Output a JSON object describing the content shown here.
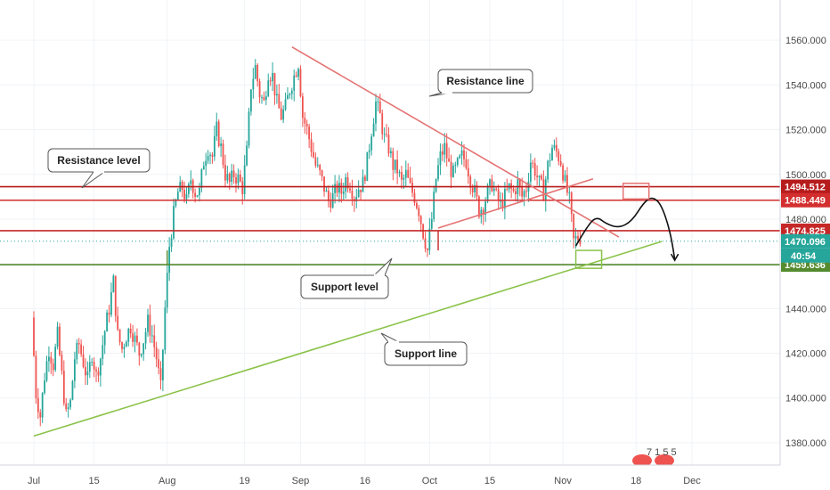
{
  "chart_data": {
    "type": "candlestick",
    "instrument_note": "",
    "x_axis": {
      "ticks": [
        {
          "label": "Jul",
          "day": 0
        },
        {
          "label": "15",
          "day": 14
        },
        {
          "label": "Aug",
          "day": 31
        },
        {
          "label": "19",
          "day": 49
        },
        {
          "label": "Sep",
          "day": 62
        },
        {
          "label": "16",
          "day": 77
        },
        {
          "label": "Oct",
          "day": 92
        },
        {
          "label": "15",
          "day": 106
        },
        {
          "label": "Nov",
          "day": 123
        },
        {
          "label": "18",
          "day": 140
        },
        {
          "label": "Dec",
          "day": 153
        }
      ]
    },
    "y_axis": {
      "ylim": [
        1370,
        1578
      ],
      "ticks": [
        1380,
        1400,
        1420,
        1440,
        1460,
        1480,
        1500,
        1520,
        1540,
        1560
      ],
      "tick_labels": [
        "1380.000",
        "1400.000",
        "1420.000",
        "1440.000",
        "1460.000",
        "1480.000",
        "1500.000",
        "1520.000",
        "1540.000",
        "1560.000"
      ]
    },
    "grid": true,
    "candle_up_color": "#26a69a",
    "candle_down_color": "#ef5350",
    "price_path": [
      [
        0,
        1436
      ],
      [
        1,
        1402
      ],
      [
        2,
        1392
      ],
      [
        3,
        1410
      ],
      [
        4,
        1422
      ],
      [
        5,
        1415
      ],
      [
        6,
        1428
      ],
      [
        7,
        1410
      ],
      [
        8,
        1392
      ],
      [
        9,
        1398
      ],
      [
        10,
        1418
      ],
      [
        11,
        1424
      ],
      [
        12,
        1416
      ],
      [
        13,
        1408
      ],
      [
        14,
        1420
      ],
      [
        15,
        1410
      ],
      [
        16,
        1418
      ],
      [
        17,
        1430
      ],
      [
        18,
        1440
      ],
      [
        19,
        1452
      ],
      [
        20,
        1428
      ],
      [
        21,
        1422
      ],
      [
        22,
        1428
      ],
      [
        23,
        1432
      ],
      [
        24,
        1426
      ],
      [
        25,
        1420
      ],
      [
        26,
        1426
      ],
      [
        27,
        1434
      ],
      [
        28,
        1428
      ],
      [
        29,
        1418
      ],
      [
        30,
        1404
      ],
      [
        31,
        1440
      ],
      [
        32,
        1468
      ],
      [
        33,
        1482
      ],
      [
        34,
        1492
      ],
      [
        35,
        1494
      ],
      [
        36,
        1488
      ],
      [
        37,
        1498
      ],
      [
        38,
        1492
      ],
      [
        39,
        1492
      ],
      [
        40,
        1506
      ],
      [
        41,
        1512
      ],
      [
        42,
        1508
      ],
      [
        43,
        1520
      ],
      [
        44,
        1512
      ],
      [
        45,
        1500
      ],
      [
        46,
        1496
      ],
      [
        47,
        1500
      ],
      [
        48,
        1498
      ],
      [
        49,
        1494
      ],
      [
        50,
        1510
      ],
      [
        51,
        1540
      ],
      [
        52,
        1548
      ],
      [
        53,
        1536
      ],
      [
        54,
        1532
      ],
      [
        55,
        1546
      ],
      [
        56,
        1544
      ],
      [
        57,
        1532
      ],
      [
        58,
        1526
      ],
      [
        59,
        1530
      ],
      [
        60,
        1538
      ],
      [
        61,
        1544
      ],
      [
        62,
        1550
      ],
      [
        63,
        1526
      ],
      [
        64,
        1520
      ],
      [
        65,
        1512
      ],
      [
        66,
        1504
      ],
      [
        67,
        1500
      ],
      [
        68,
        1494
      ],
      [
        69,
        1488
      ],
      [
        70,
        1490
      ],
      [
        71,
        1494
      ],
      [
        72,
        1492
      ],
      [
        73,
        1498
      ],
      [
        74,
        1496
      ],
      [
        75,
        1490
      ],
      [
        76,
        1494
      ],
      [
        77,
        1496
      ],
      [
        78,
        1506
      ],
      [
        79,
        1520
      ],
      [
        80,
        1532
      ],
      [
        81,
        1526
      ],
      [
        82,
        1516
      ],
      [
        83,
        1512
      ],
      [
        84,
        1504
      ],
      [
        85,
        1502
      ],
      [
        86,
        1496
      ],
      [
        87,
        1500
      ],
      [
        88,
        1494
      ],
      [
        89,
        1490
      ],
      [
        90,
        1484
      ],
      [
        91,
        1474
      ],
      [
        92,
        1466
      ],
      [
        93,
        1480
      ],
      [
        94,
        1498
      ],
      [
        95,
        1508
      ],
      [
        96,
        1512
      ],
      [
        97,
        1504
      ],
      [
        98,
        1500
      ],
      [
        99,
        1504
      ],
      [
        100,
        1508
      ],
      [
        101,
        1506
      ],
      [
        102,
        1498
      ],
      [
        103,
        1492
      ],
      [
        104,
        1484
      ],
      [
        105,
        1486
      ],
      [
        106,
        1492
      ],
      [
        107,
        1496
      ],
      [
        108,
        1490
      ],
      [
        109,
        1486
      ],
      [
        110,
        1490
      ],
      [
        111,
        1494
      ],
      [
        112,
        1492
      ],
      [
        113,
        1496
      ],
      [
        114,
        1490
      ],
      [
        115,
        1494
      ],
      [
        116,
        1506
      ],
      [
        117,
        1502
      ],
      [
        118,
        1496
      ],
      [
        119,
        1492
      ],
      [
        120,
        1504
      ],
      [
        121,
        1512
      ],
      [
        122,
        1510
      ],
      [
        123,
        1506
      ],
      [
        124,
        1496
      ],
      [
        125,
        1488
      ],
      [
        126,
        1470
      ],
      [
        127,
        1472
      ]
    ],
    "price_lines": [
      {
        "name": "resistance-upper",
        "value": 1494.512,
        "color": "#b71c1c",
        "label": "1494.512"
      },
      {
        "name": "resistance-lower",
        "value": 1488.449,
        "color": "#d32f2f",
        "label": "1488.449"
      },
      {
        "name": "mid-level",
        "value": 1474.825,
        "color": "#c62828",
        "label": "1474.825"
      },
      {
        "name": "support-level",
        "value": 1459.636,
        "color": "#558b2f",
        "label": "1459.636"
      }
    ],
    "current_price": {
      "value": 1470.096,
      "label": "1470.096",
      "color": "#26a69a"
    },
    "countdown": {
      "label": "40:54",
      "color": "#26a69a"
    },
    "trendlines": [
      {
        "name": "resistance-line",
        "color": "#e57373",
        "from": {
          "day": 60,
          "value": 1557
        },
        "to": {
          "day": 136,
          "value": 1472
        }
      },
      {
        "name": "support-line",
        "color": "#8bc34a",
        "from": {
          "day": 0,
          "value": 1383
        },
        "to": {
          "day": 146,
          "value": 1470
        }
      },
      {
        "name": "triangle-lower-edge",
        "color": "#e57373",
        "from": {
          "day": 94,
          "value": 1476
        },
        "to": {
          "day": 130,
          "value": 1498
        }
      }
    ],
    "annotations": [
      {
        "name": "resistance-line-label",
        "text": "Resistance line"
      },
      {
        "name": "resistance-level-label",
        "text": "Resistance level"
      },
      {
        "name": "support-level-label",
        "text": "Support level"
      },
      {
        "name": "support-line-label",
        "text": "Support line"
      }
    ],
    "projection_path": [
      [
        126,
        1468
      ],
      [
        129,
        1478
      ],
      [
        131,
        1481
      ],
      [
        133,
        1478
      ],
      [
        136,
        1476
      ],
      [
        139,
        1479
      ],
      [
        142,
        1488
      ],
      [
        144,
        1490
      ],
      [
        146,
        1486
      ],
      [
        148,
        1474
      ],
      [
        149,
        1462
      ]
    ],
    "boxes": [
      {
        "name": "target-box-red",
        "color": "#e57373",
        "day_from": 137,
        "day_to": 143,
        "value_from": 1489,
        "value_to": 1496
      },
      {
        "name": "touch-box-green",
        "color": "#8bc34a",
        "day_from": 126,
        "day_to": 132,
        "value_from": 1458,
        "value_to": 1466
      }
    ],
    "watermark_text": "7 1 5 5"
  }
}
